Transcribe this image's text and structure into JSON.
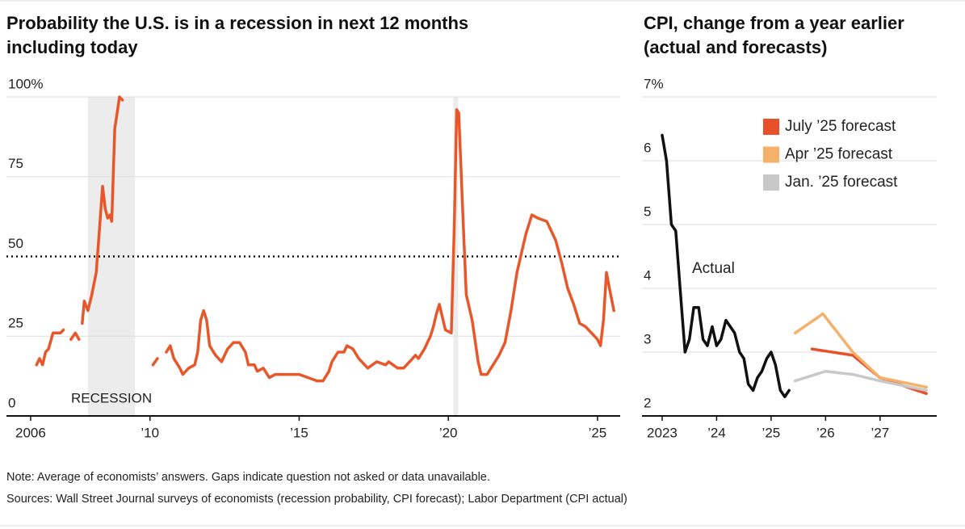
{
  "chart_data": [
    {
      "type": "line",
      "title": [
        "Probability the U.S. is in a recession in next 12 months",
        "including today"
      ],
      "xlim": [
        2005.19,
        2025.76
      ],
      "ylim": [
        0,
        100
      ],
      "xticks": [
        2006,
        {
          "value": 2010,
          "label": "’10"
        },
        {
          "value": 2015,
          "label": "’15"
        },
        {
          "value": 2020,
          "label": "’20"
        },
        {
          "value": 2025,
          "label": "’25"
        }
      ],
      "yticks": [
        0,
        25,
        50,
        75,
        {
          "value": 100,
          "label": "100%"
        }
      ],
      "grid": true,
      "reference_line": 50,
      "shaded_periods": [
        [
          2007.92,
          2009.5
        ],
        [
          2020.17,
          2020.33
        ]
      ],
      "shaded_label": "RECESSION",
      "series": [
        {
          "color": "#e8572a",
          "x": [
            2006.2,
            2006.3,
            2006.4,
            2006.5,
            2006.6,
            2006.75,
            2007.0,
            2007.1,
            2007.2,
            2007.35,
            2007.5,
            2007.62,
            2007.68,
            2007.73,
            2007.8,
            2007.92,
            2008.05,
            2008.2,
            2008.32,
            2008.41,
            2008.5,
            2008.58,
            2008.66,
            2008.72,
            2008.82,
            2008.98,
            2009.08,
            2009.6,
            2010.1,
            2010.25,
            2010.4,
            2010.55,
            2010.68,
            2010.8,
            2011.0,
            2011.1,
            2011.3,
            2011.5,
            2011.6,
            2011.7,
            2011.8,
            2011.9,
            2012.0,
            2012.2,
            2012.4,
            2012.6,
            2012.8,
            2013.0,
            2013.2,
            2013.3,
            2013.5,
            2013.6,
            2013.8,
            2014.0,
            2014.2,
            2014.5,
            2014.8,
            2015.0,
            2015.3,
            2015.6,
            2015.8,
            2016.0,
            2016.1,
            2016.3,
            2016.5,
            2016.6,
            2016.8,
            2017.0,
            2017.3,
            2017.6,
            2017.9,
            2018.0,
            2018.3,
            2018.5,
            2018.7,
            2018.9,
            2019.0,
            2019.2,
            2019.4,
            2019.5,
            2019.6,
            2019.7,
            2019.8,
            2019.9,
            2020.1,
            2020.2,
            2020.28,
            2020.35,
            2020.5,
            2020.6,
            2020.8,
            2021.0,
            2021.1,
            2021.3,
            2021.5,
            2021.7,
            2021.9,
            2022.1,
            2022.3,
            2022.6,
            2022.8,
            2023.0,
            2023.3,
            2023.6,
            2023.8,
            2024.0,
            2024.2,
            2024.4,
            2024.6,
            2024.8,
            2025.0,
            2025.1,
            2025.2,
            2025.3,
            2025.4,
            2025.55
          ],
          "values": [
            16,
            18,
            16,
            20,
            21,
            26,
            26,
            27,
            null,
            24,
            26,
            24,
            null,
            29,
            36,
            33,
            38,
            45,
            60,
            72,
            65,
            62,
            63,
            61,
            90,
            100,
            99,
            null,
            16,
            18,
            null,
            20,
            22,
            18,
            15,
            13,
            15,
            16,
            20,
            30,
            33,
            30,
            22,
            19,
            17,
            21,
            23,
            23,
            20,
            16,
            16,
            14,
            15,
            12,
            13,
            13,
            13,
            13,
            12,
            11,
            11,
            14,
            17,
            20,
            20,
            22,
            21,
            18,
            15,
            17,
            16,
            17,
            15,
            15,
            17,
            19,
            18,
            21,
            25,
            28,
            32,
            35,
            31,
            27,
            26,
            60,
            96,
            95,
            60,
            38,
            30,
            17,
            13,
            13,
            16,
            19,
            23,
            33,
            45,
            57,
            63,
            62,
            61,
            55,
            48,
            40,
            35,
            29,
            28,
            26,
            24,
            22,
            30,
            45,
            40,
            33
          ]
        }
      ]
    },
    {
      "type": "line",
      "title": [
        "CPI, change from a year earlier",
        "(actual and forecasts)"
      ],
      "xlim": [
        2022.63,
        2028.04
      ],
      "ylim": [
        2,
        7
      ],
      "xticks": [
        2023,
        {
          "value": 2024,
          "label": "’24"
        },
        {
          "value": 2025,
          "label": "’25"
        },
        {
          "value": 2026,
          "label": "’26"
        },
        {
          "value": 2027,
          "label": "’27"
        }
      ],
      "yticks": [
        2,
        3,
        4,
        5,
        6,
        {
          "value": 7,
          "label": "7%"
        }
      ],
      "grid": true,
      "legend": "upper right",
      "annotations": [
        {
          "text": "Actual"
        }
      ],
      "series": [
        {
          "color": "#111111",
          "x": [
            2023.0,
            2023.08,
            2023.17,
            2023.25,
            2023.33,
            2023.42,
            2023.5,
            2023.58,
            2023.67,
            2023.75,
            2023.83,
            2023.92,
            2024.0,
            2024.08,
            2024.17,
            2024.25,
            2024.33,
            2024.42,
            2024.5,
            2024.58,
            2024.67,
            2024.75,
            2024.83,
            2024.92,
            2025.0,
            2025.08,
            2025.17,
            2025.25,
            2025.33
          ],
          "values": [
            6.4,
            6.0,
            5.0,
            4.9,
            4.0,
            3.0,
            3.2,
            3.7,
            3.7,
            3.2,
            3.1,
            3.4,
            3.1,
            3.2,
            3.5,
            3.4,
            3.3,
            3.0,
            2.9,
            2.5,
            2.4,
            2.6,
            2.7,
            2.9,
            3.0,
            2.8,
            2.4,
            2.3,
            2.4
          ]
        },
        {
          "name": "July ’25 forecast",
          "color": "#e8502a",
          "x": [
            2025.75,
            2026.5,
            2027.0,
            2027.5,
            2027.85
          ],
          "values": [
            3.05,
            2.95,
            2.6,
            2.45,
            2.35
          ]
        },
        {
          "name": "Apr ’25 forecast",
          "color": "#f5b06a",
          "x": [
            2025.44,
            2025.95,
            2026.5,
            2027.0,
            2027.85
          ],
          "values": [
            3.3,
            3.6,
            3.0,
            2.6,
            2.45
          ]
        },
        {
          "name": "Jan. ’25 forecast",
          "color": "#c8c8c8",
          "x": [
            2025.44,
            2026.0,
            2026.5,
            2027.0,
            2027.85
          ],
          "values": [
            2.55,
            2.7,
            2.65,
            2.55,
            2.4
          ]
        }
      ]
    }
  ],
  "footer": {
    "note": "Note: Average of economists’ answers. Gaps indicate question not asked or data unavailable.",
    "sources": "Sources: Wall Street Journal surveys of economists (recession probability, CPI forecast); Labor Department (CPI actual)"
  }
}
